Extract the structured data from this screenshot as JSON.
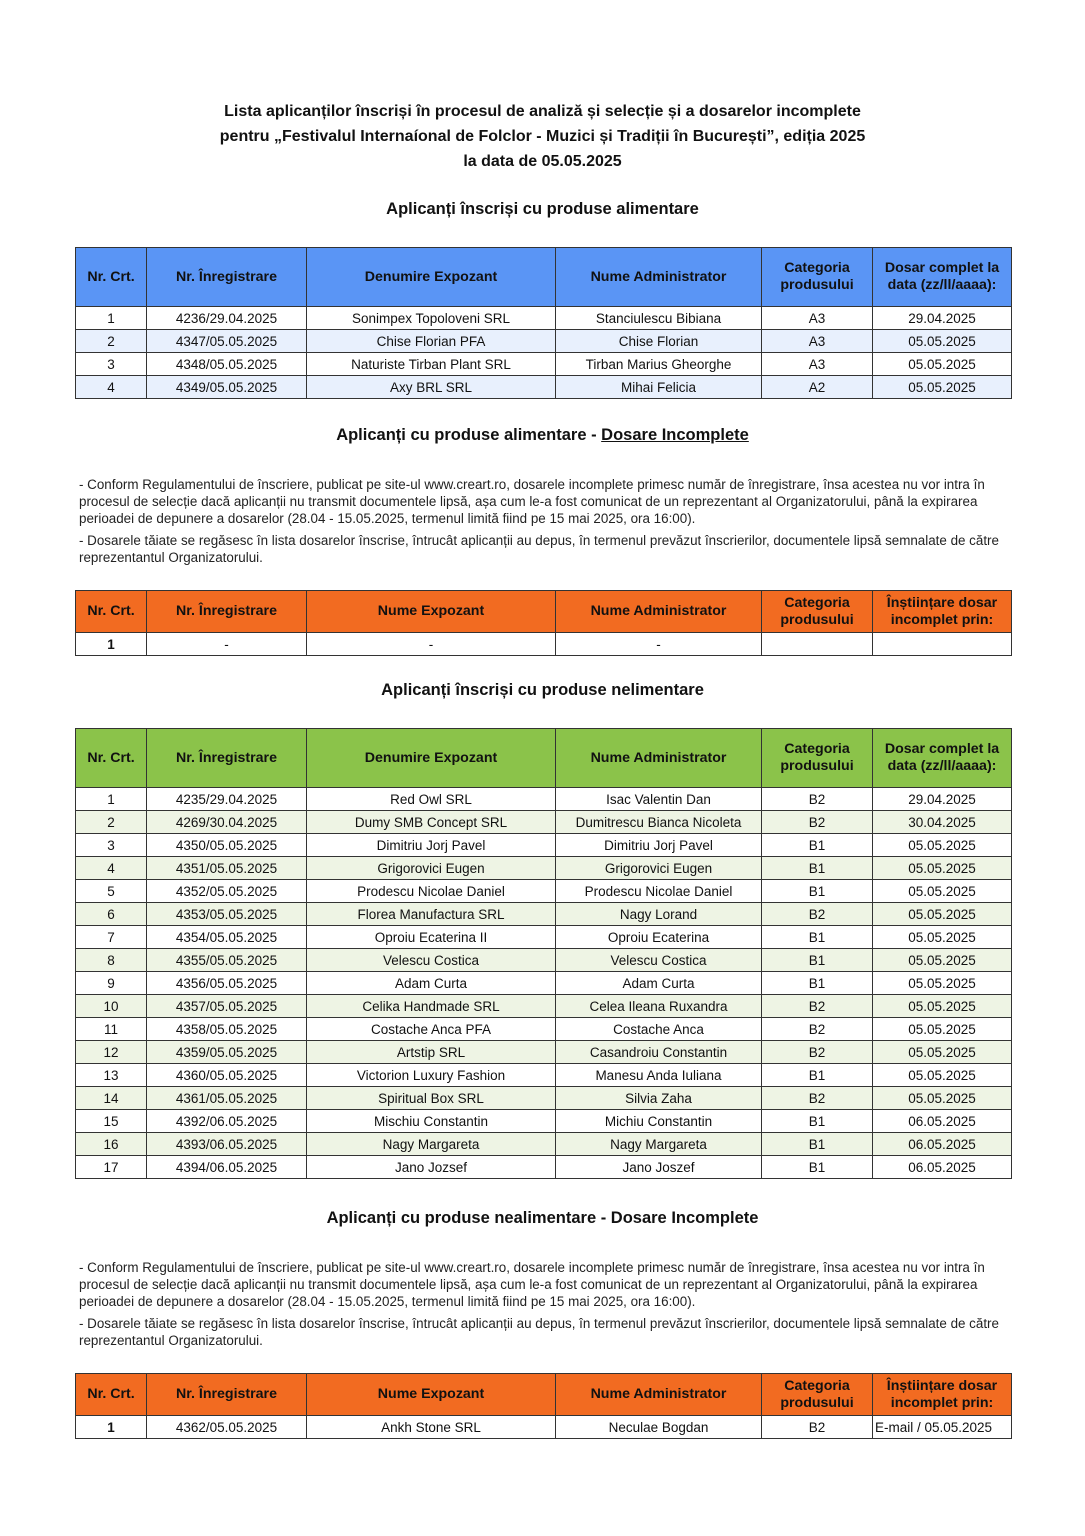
{
  "title": {
    "line1": "Lista aplicanților înscriși în procesul de analiză și selecție și a dosarelor incomplete",
    "line2": "pentru „Festivalul Internaíonal de Folclor - Muzici și Tradiții în București”, ediția 2025",
    "line3": "la data de 05.05.2025"
  },
  "colors": {
    "blue_header": "#5a95f5",
    "green_header": "#8bc34a",
    "orange_header": "#f26b21"
  },
  "sections": {
    "food": {
      "heading": "Aplicanți înscriși cu produse alimentare",
      "headers": [
        "Nr. Crt.",
        "Nr. Înregistrare",
        "Denumire Expozant",
        "Nume Administrator",
        "Categoria produsului",
        "Dosar complet la data (zz/ll/aaaa):"
      ],
      "rows": [
        [
          "1",
          "4236/29.04.2025",
          "Sonimpex Topoloveni SRL",
          "Stanciulescu Bibiana",
          "A3",
          "29.04.2025"
        ],
        [
          "2",
          "4347/05.05.2025",
          "Chise Florian PFA",
          "Chise Florian",
          "A3",
          "05.05.2025"
        ],
        [
          "3",
          "4348/05.05.2025",
          "Naturiste Tirban Plant SRL",
          "Tirban Marius Gheorghe",
          "A3",
          "05.05.2025"
        ],
        [
          "4",
          "4349/05.05.2025",
          "Axy BRL SRL",
          "Mihai Felicia",
          "A2",
          "05.05.2025"
        ]
      ]
    },
    "food_incomplete": {
      "heading_prefix": "Aplicanți cu produse alimentare - ",
      "heading_underlined": "Dosare Incomplete",
      "notes": [
        "- Conform Regulamentului de înscriere, publicat pe site-ul www.creart.ro, dosarele incomplete primesc număr de înregistrare, însa acestea nu vor intra în procesul de selecție dacă aplicanții nu transmit documentele lipsă, așa cum le-a fost comunicat de un reprezentant al Organizatorului, până la expirarea perioadei de depunere a dosarelor (28.04 - 15.05.2025, termenul limită fiind pe 15 mai 2025, ora 16:00).",
        "- Dosarele tăiate se regăsesc în lista dosarelor înscrise, întrucât aplicanții au depus, în termenul prevăzut înscrierilor, documentele lipsă semnalate de către reprezentantul Organizatorului."
      ],
      "headers": [
        "Nr. Crt.",
        "Nr. Înregistrare",
        "Nume Expozant",
        "Nume Administrator",
        "Categoria produsului",
        "Înștiințare dosar incomplet prin:"
      ],
      "rows": [
        [
          "1",
          "-",
          "-",
          "-",
          "",
          ""
        ]
      ]
    },
    "nonfood": {
      "heading": "Aplicanți înscriși cu produse nelimentare",
      "headers": [
        "Nr. Crt.",
        "Nr. Înregistrare",
        "Denumire Expozant",
        "Nume Administrator",
        "Categoria produsului",
        "Dosar complet la data (zz/ll/aaaa):"
      ],
      "rows": [
        [
          "1",
          "4235/29.04.2025",
          "Red Owl SRL",
          "Isac Valentin Dan",
          "B2",
          "29.04.2025"
        ],
        [
          "2",
          "4269/30.04.2025",
          "Dumy SMB Concept SRL",
          "Dumitrescu Bianca Nicoleta",
          "B2",
          "30.04.2025"
        ],
        [
          "3",
          "4350/05.05.2025",
          "Dimitriu Jorj Pavel",
          "Dimitriu Jorj Pavel",
          "B1",
          "05.05.2025"
        ],
        [
          "4",
          "4351/05.05.2025",
          "Grigorovici Eugen",
          "Grigorovici Eugen",
          "B1",
          "05.05.2025"
        ],
        [
          "5",
          "4352/05.05.2025",
          "Prodescu Nicolae Daniel",
          "Prodescu Nicolae Daniel",
          "B1",
          "05.05.2025"
        ],
        [
          "6",
          "4353/05.05.2025",
          "Florea Manufactura SRL",
          "Nagy Lorand",
          "B2",
          "05.05.2025"
        ],
        [
          "7",
          "4354/05.05.2025",
          "Oproiu Ecaterina II",
          "Oproiu Ecaterina",
          "B1",
          "05.05.2025"
        ],
        [
          "8",
          "4355/05.05.2025",
          "Velescu Costica",
          "Velescu Costica",
          "B1",
          "05.05.2025"
        ],
        [
          "9",
          "4356/05.05.2025",
          "Adam Curta",
          "Adam Curta",
          "B1",
          "05.05.2025"
        ],
        [
          "10",
          "4357/05.05.2025",
          "Celika Handmade SRL",
          "Celea Ileana Ruxandra",
          "B2",
          "05.05.2025"
        ],
        [
          "11",
          "4358/05.05.2025",
          "Costache Anca PFA",
          "Costache Anca",
          "B2",
          "05.05.2025"
        ],
        [
          "12",
          "4359/05.05.2025",
          "Artstip SRL",
          "Casandroiu Constantin",
          "B2",
          "05.05.2025"
        ],
        [
          "13",
          "4360/05.05.2025",
          "Victorion Luxury Fashion",
          "Manesu Anda Iuliana",
          "B1",
          "05.05.2025"
        ],
        [
          "14",
          "4361/05.05.2025",
          "Spiritual Box SRL",
          "Silvia Zaha",
          "B2",
          "05.05.2025"
        ],
        [
          "15",
          "4392/06.05.2025",
          "Mischiu Constantin",
          "Michiu Constantin",
          "B1",
          "06.05.2025"
        ],
        [
          "16",
          "4393/06.05.2025",
          "Nagy Margareta",
          "Nagy Margareta",
          "B1",
          "06.05.2025"
        ],
        [
          "17",
          "4394/06.05.2025",
          "Jano Jozsef",
          "Jano Joszef",
          "B1",
          "06.05.2025"
        ]
      ]
    },
    "nonfood_incomplete": {
      "heading": "Aplicanți cu produse nealimentare - Dosare Incomplete",
      "notes": [
        "- Conform Regulamentului de înscriere, publicat pe site-ul www.creart.ro, dosarele incomplete primesc număr de înregistrare, însa acestea nu vor intra în procesul de selecție dacă aplicanții nu transmit documentele lipsă, așa cum le-a fost comunicat de un reprezentant al Organizatorului, până la expirarea perioadei de depunere a dosarelor (28.04 - 15.05.2025, termenul limită fiind pe 15 mai 2025, ora 16:00).",
        "- Dosarele tăiate se regăsesc în lista dosarelor înscrise, întrucât aplicanții au depus, în termenul prevăzut înscrierilor, documentele lipsă semnalate de către reprezentantul Organizatorului."
      ],
      "headers": [
        "Nr. Crt.",
        "Nr. Înregistrare",
        "Nume Expozant",
        "Nume Administrator",
        "Categoria produsului",
        "Înștiințare dosar incomplet prin:"
      ],
      "rows": [
        [
          "1",
          "4362/05.05.2025",
          "Ankh Stone SRL",
          "Neculae Bogdan",
          "B2",
          "E-mail / 05.05.2025"
        ]
      ]
    }
  }
}
